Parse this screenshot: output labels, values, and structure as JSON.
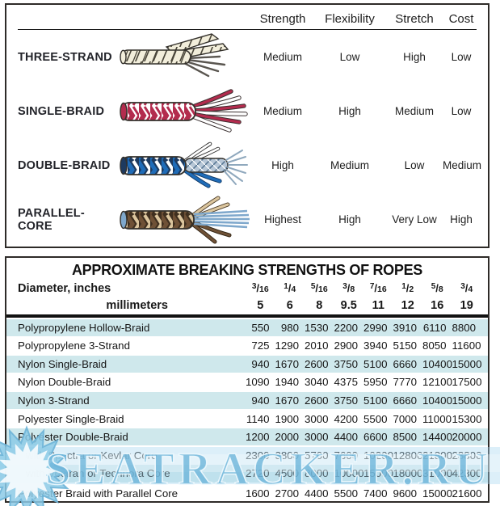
{
  "comparison": {
    "headers": [
      "Strength",
      "Flexibility",
      "Stretch",
      "Cost"
    ],
    "rows": [
      {
        "label": "THREE-STRAND",
        "illustration": "three-strand-rope",
        "strength": "Medium",
        "flexibility": "Low",
        "stretch": "High",
        "cost": "Low"
      },
      {
        "label": "SINGLE-BRAID",
        "illustration": "single-braid-rope",
        "strength": "Medium",
        "flexibility": "High",
        "stretch": "Medium",
        "cost": "Low"
      },
      {
        "label": "DOUBLE-BRAID",
        "illustration": "double-braid-rope",
        "strength": "High",
        "flexibility": "Medium",
        "stretch": "Low",
        "cost": "Medium"
      },
      {
        "label": "PARALLEL-CORE",
        "illustration": "parallel-core-rope",
        "strength": "Highest",
        "flexibility": "High",
        "stretch": "Very Low",
        "cost": "High"
      }
    ]
  },
  "strengths_table": {
    "title": "APPROXIMATE BREAKING STRENGTHS OF ROPES",
    "inches_label": "Diameter, inches",
    "mm_label": "millimeters",
    "inches": [
      {
        "n": "3",
        "d": "16"
      },
      {
        "n": "1",
        "d": "4"
      },
      {
        "n": "5",
        "d": "16"
      },
      {
        "n": "3",
        "d": "8"
      },
      {
        "n": "7",
        "d": "16"
      },
      {
        "n": "1",
        "d": "2"
      },
      {
        "n": "5",
        "d": "8"
      },
      {
        "n": "3",
        "d": "4"
      }
    ],
    "millimeters": [
      "5",
      "6",
      "8",
      "9.5",
      "11",
      "12",
      "16",
      "19"
    ],
    "rows": [
      {
        "name": "Polypropylene Hollow-Braid",
        "values": [
          "550",
          "980",
          "1530",
          "2200",
          "2990",
          "3910",
          "6110",
          "8800"
        ],
        "highlight": true,
        "indent": false
      },
      {
        "name": "Polypropylene 3-Strand",
        "values": [
          "725",
          "1290",
          "2010",
          "2900",
          "3940",
          "5150",
          "8050",
          "11600"
        ],
        "highlight": false,
        "indent": false
      },
      {
        "name": "Nylon Single-Braid",
        "values": [
          "940",
          "1670",
          "2600",
          "3750",
          "5100",
          "6660",
          "10400",
          "15000"
        ],
        "highlight": true,
        "indent": false
      },
      {
        "name": "Nylon Double-Braid",
        "values": [
          "1090",
          "1940",
          "3040",
          "4375",
          "5950",
          "7770",
          "12100",
          "17500"
        ],
        "highlight": false,
        "indent": false
      },
      {
        "name": "Nylon 3-Strand",
        "values": [
          "940",
          "1670",
          "2600",
          "3750",
          "5100",
          "6660",
          "10400",
          "15000"
        ],
        "highlight": true,
        "indent": false
      },
      {
        "name": "Polyester Single-Braid",
        "values": [
          "1140",
          "1900",
          "3000",
          "4200",
          "5500",
          "7000",
          "11000",
          "15300"
        ],
        "highlight": false,
        "indent": false
      },
      {
        "name": "Polyester Double-Braid",
        "values": [
          "1200",
          "2000",
          "3000",
          "4400",
          "6600",
          "8500",
          "14400",
          "20000"
        ],
        "highlight": true,
        "indent": false
      },
      {
        "name": "with Spectra or Kevlar Core",
        "values": [
          "2300",
          "3800",
          "5700",
          "7600",
          "10200",
          "12800",
          "21800",
          "28800"
        ],
        "highlight": false,
        "indent": true
      },
      {
        "name": "with Vectran or Technora Core",
        "values": [
          "2720",
          "4500",
          "8000",
          "10000",
          "15000",
          "18000",
          "31000",
          "42300"
        ],
        "highlight": true,
        "indent": true
      },
      {
        "name": "Polyester Braid with Parallel Core",
        "values": [
          "1600",
          "2700",
          "4400",
          "5500",
          "7400",
          "9600",
          "15000",
          "21600"
        ],
        "highlight": false,
        "indent": false
      }
    ]
  },
  "watermark": {
    "text": "SEATRACKER.RU"
  },
  "colors": {
    "text": "#212121",
    "outline": "#33302b",
    "row_highlight": "#cfe8ec",
    "watermark_blue": "#7fc3e3",
    "rope_cream": "#f2eedb",
    "rope_crimson": "#b32c4e",
    "rope_blue": "#1f6cb8",
    "rope_navy": "#1d3a5f",
    "rope_brown": "#6f5136",
    "rope_dark_brown": "#3f2f1f",
    "rope_tan": "#dcc69e",
    "core_gray": "#b6c6d6",
    "fiber_blue": "#7fa8cc",
    "fiber_gray": "#5a5650"
  }
}
